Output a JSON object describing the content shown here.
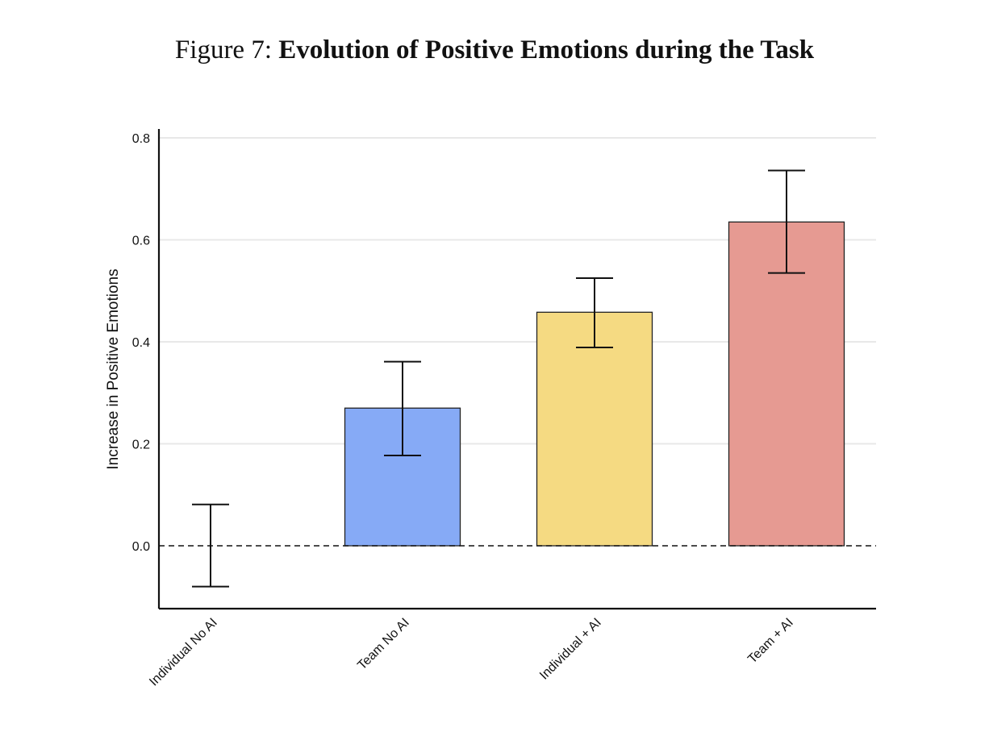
{
  "figure": {
    "prefix": "Figure 7: ",
    "title": "Evolution of Positive Emotions during the Task"
  },
  "chart_data": {
    "type": "bar",
    "ylabel": "Increase in Positive Emotions",
    "xlabel": "",
    "ylim": [
      -0.12,
      0.815
    ],
    "yticks": [
      0.0,
      0.2,
      0.4,
      0.6,
      0.8
    ],
    "ytick_labels": [
      "0.0",
      "0.2",
      "0.4",
      "0.6",
      "0.8"
    ],
    "grid": "horizontal",
    "reference_line": {
      "y": 0.0,
      "style": "dashed"
    },
    "categories": [
      "Individual No AI",
      "Team No AI",
      "Individual + AI",
      "Team + AI"
    ],
    "values": [
      0.0,
      0.27,
      0.458,
      0.635
    ],
    "error_low": [
      -0.08,
      0.177,
      0.389,
      0.535
    ],
    "error_high": [
      0.081,
      0.361,
      0.525,
      0.736
    ],
    "colors": [
      "#ffffff",
      "#86aaf6",
      "#f5da82",
      "#e69a92"
    ]
  }
}
